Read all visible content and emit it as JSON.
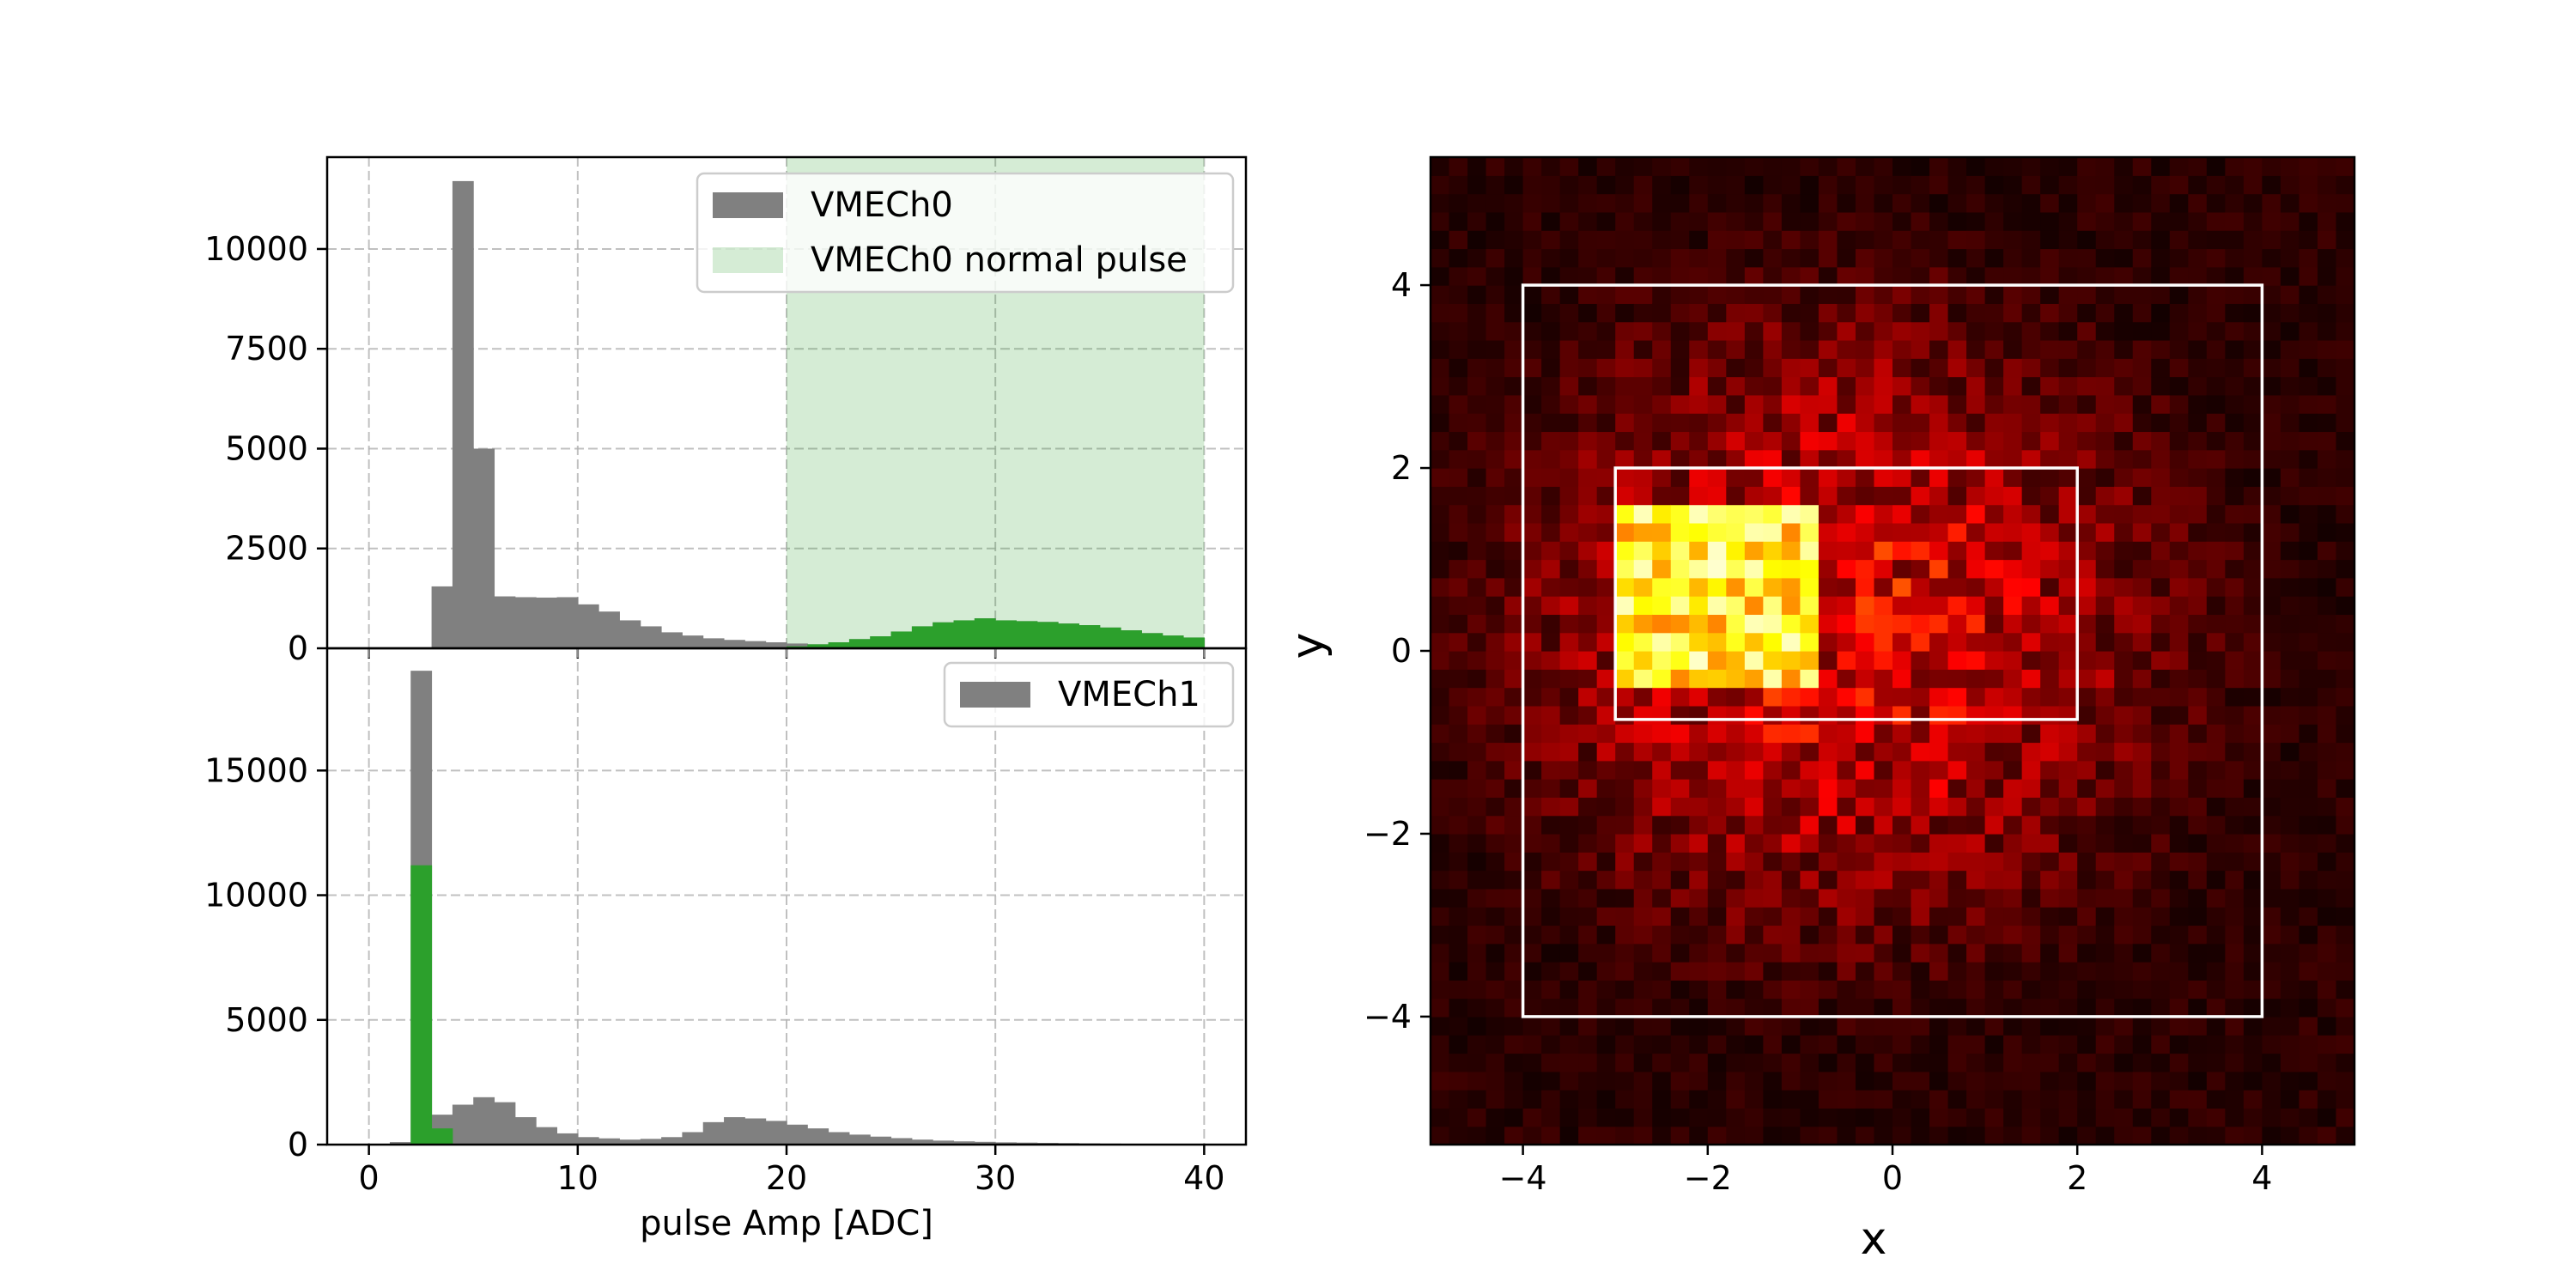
{
  "chart_data": [
    {
      "type": "bar",
      "panel": "top-left",
      "xlim": [
        -2,
        42
      ],
      "ylim": [
        0,
        12300
      ],
      "yticks": [
        0,
        2500,
        5000,
        7500,
        10000
      ],
      "xticks": [
        0,
        10,
        20,
        30,
        40
      ],
      "grid": true,
      "bin_edges": [
        0,
        1,
        2,
        3,
        4,
        5,
        6,
        7,
        8,
        9,
        10,
        11,
        12,
        13,
        14,
        15,
        16,
        17,
        18,
        19,
        20,
        21,
        22,
        23,
        24,
        25,
        26,
        27,
        28,
        29,
        30,
        31,
        32,
        33,
        34,
        35,
        36,
        37,
        38,
        39,
        40
      ],
      "series": [
        {
          "name": "VMECh0",
          "color": "#808080",
          "values": [
            0,
            0,
            0,
            1550,
            11700,
            5000,
            1300,
            1280,
            1270,
            1280,
            1100,
            920,
            700,
            550,
            400,
            320,
            250,
            210,
            180,
            150,
            120,
            100,
            150,
            230,
            300,
            420,
            550,
            650,
            700,
            750,
            700,
            680,
            660,
            620,
            580,
            520,
            450,
            380,
            320,
            270
          ]
        },
        {
          "name": "",
          "color": "#2ca02c",
          "values": [
            0,
            0,
            0,
            0,
            0,
            0,
            0,
            0,
            0,
            0,
            0,
            0,
            0,
            0,
            0,
            0,
            0,
            0,
            0,
            0,
            50,
            100,
            150,
            230,
            300,
            420,
            550,
            650,
            700,
            750,
            700,
            680,
            660,
            620,
            580,
            520,
            450,
            380,
            320,
            270
          ]
        }
      ],
      "shaded_region": {
        "name": "VMECh0 normal pulse",
        "x": [
          20,
          40
        ],
        "color": "#2ca02c",
        "alpha": 0.2
      },
      "legend": {
        "placement": "top-right",
        "entries": [
          "VMECh0",
          "VMECh0 normal pulse"
        ]
      }
    },
    {
      "type": "bar",
      "panel": "bottom-left",
      "xlim": [
        -2,
        42
      ],
      "ylim": [
        0,
        19900
      ],
      "yticks": [
        0,
        5000,
        10000,
        15000
      ],
      "xticks": [
        0,
        10,
        20,
        30,
        40
      ],
      "xlabel": "pulse Amp [ADC]",
      "grid": true,
      "bin_edges": [
        0,
        1,
        2,
        3,
        4,
        5,
        6,
        7,
        8,
        9,
        10,
        11,
        12,
        13,
        14,
        15,
        16,
        17,
        18,
        19,
        20,
        21,
        22,
        23,
        24,
        25,
        26,
        27,
        28,
        29,
        30,
        31,
        32,
        33,
        34,
        35,
        36,
        37,
        38,
        39,
        40
      ],
      "series": [
        {
          "name": "VMECh1",
          "color": "#808080",
          "values": [
            0,
            100,
            19000,
            1200,
            1600,
            1900,
            1700,
            1100,
            700,
            450,
            300,
            250,
            200,
            230,
            300,
            500,
            900,
            1100,
            1050,
            950,
            800,
            650,
            500,
            400,
            320,
            260,
            200,
            160,
            130,
            110,
            90,
            80,
            70,
            60,
            50,
            40,
            30,
            20,
            15,
            10
          ]
        },
        {
          "name": "",
          "color": "#2ca02c",
          "values": [
            0,
            0,
            11200,
            650,
            0,
            0,
            0,
            0,
            0,
            0,
            0,
            0,
            0,
            0,
            0,
            0,
            0,
            0,
            0,
            0,
            0,
            0,
            0,
            0,
            0,
            0,
            0,
            0,
            0,
            0,
            0,
            0,
            0,
            0,
            0,
            0,
            0,
            0,
            0,
            0
          ]
        }
      ],
      "legend": {
        "placement": "top-right",
        "entries": [
          "VMECh1"
        ]
      }
    },
    {
      "type": "heatmap",
      "panel": "right",
      "colormap": "hot",
      "xlim": [
        -5,
        5
      ],
      "ylim": [
        -5.4,
        5.4
      ],
      "xticks": [
        -4,
        -2,
        0,
        2,
        4
      ],
      "yticks": [
        -4,
        -2,
        0,
        2,
        4
      ],
      "xlabel": "x",
      "ylabel": "y",
      "bins": {
        "nx": 50,
        "ny": 54
      },
      "hotspot": {
        "x": [
          -3,
          -0.8
        ],
        "y": [
          -0.4,
          1.6
        ]
      },
      "rectangles": [
        {
          "x": [
            -4,
            4
          ],
          "y": [
            -4,
            4
          ],
          "color": "#ffffff"
        },
        {
          "x": [
            -3,
            2
          ],
          "y": [
            -0.75,
            2
          ],
          "color": "#ffffff"
        }
      ],
      "grid": false
    }
  ],
  "labels": {
    "xlabel_left": "pulse Amp [ADC]",
    "xlabel_right": "x",
    "ylabel_right": "y",
    "legend_top_1": "VMECh0",
    "legend_top_2": "VMECh0 normal pulse",
    "legend_bottom_1": "VMECh1"
  }
}
